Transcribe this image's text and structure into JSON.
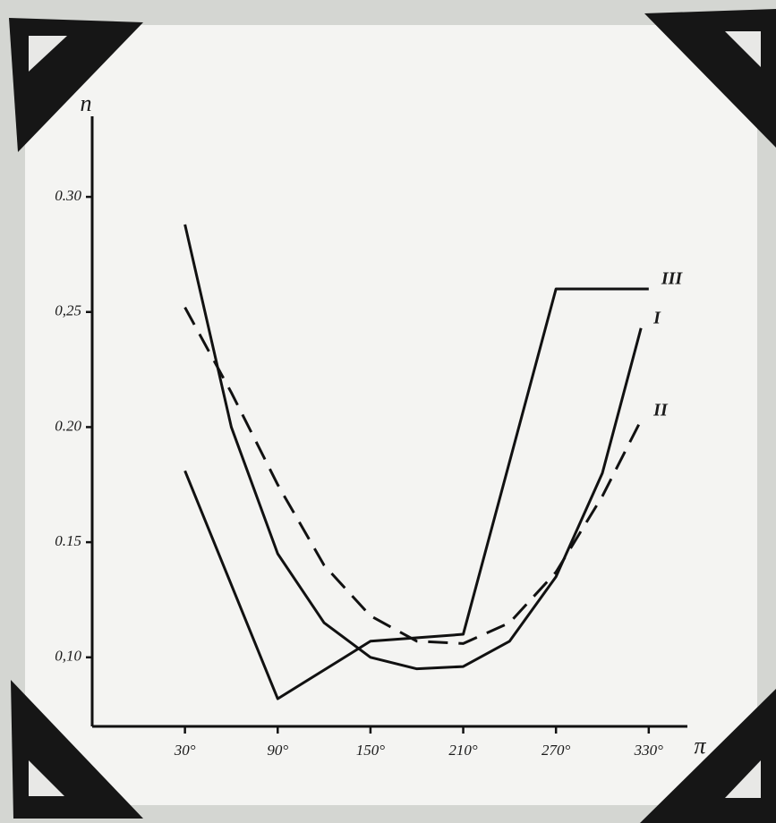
{
  "chart_data": {
    "type": "line",
    "y_label": "n",
    "x_label": "π",
    "xlim": [
      -30,
      355
    ],
    "ylim": [
      0.07,
      0.335
    ],
    "xticks": [
      {
        "value": 30,
        "label": "30°"
      },
      {
        "value": 90,
        "label": "90°"
      },
      {
        "value": 150,
        "label": "150°"
      },
      {
        "value": 210,
        "label": "210°"
      },
      {
        "value": 270,
        "label": "270°"
      },
      {
        "value": 330,
        "label": "330°"
      }
    ],
    "yticks": [
      {
        "value": 0.1,
        "label": "0,10"
      },
      {
        "value": 0.15,
        "label": "0.15"
      },
      {
        "value": 0.2,
        "label": "0.20"
      },
      {
        "value": 0.25,
        "label": "0,25"
      },
      {
        "value": 0.3,
        "label": "0.30"
      }
    ],
    "series": [
      {
        "name": "III",
        "color": "#111111",
        "dashed": false,
        "x": [
          30,
          90,
          150,
          210,
          270,
          330
        ],
        "values": [
          0.181,
          0.082,
          0.107,
          0.11,
          0.26,
          0.26
        ]
      },
      {
        "name": "I",
        "color": "#111111",
        "dashed": false,
        "x": [
          30,
          60,
          90,
          120,
          150,
          180,
          210,
          240,
          270,
          300,
          325
        ],
        "values": [
          0.288,
          0.2,
          0.145,
          0.115,
          0.1,
          0.095,
          0.096,
          0.107,
          0.135,
          0.18,
          0.243
        ]
      },
      {
        "name": "II",
        "color": "#111111",
        "dashed": true,
        "x": [
          30,
          60,
          90,
          120,
          150,
          180,
          210,
          240,
          270,
          300,
          325
        ],
        "values": [
          0.252,
          0.215,
          0.175,
          0.14,
          0.118,
          0.107,
          0.106,
          0.115,
          0.137,
          0.17,
          0.203
        ]
      }
    ]
  }
}
